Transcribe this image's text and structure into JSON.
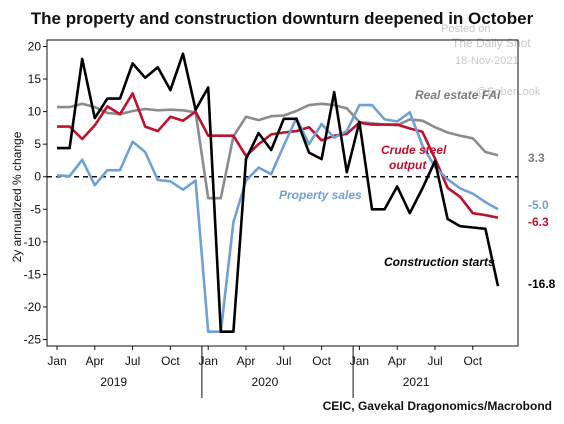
{
  "chart_data": {
    "type": "line",
    "title": "The property and construction downturn deepened in October",
    "ylabel": "2y annualized % change",
    "ylim": [
      -26,
      21
    ],
    "y_ticks": [
      20,
      15,
      10,
      5,
      0,
      -5,
      -10,
      -15,
      -20,
      -25
    ],
    "x_start": "2019-01",
    "x_months": 35,
    "month_ticks": [
      {
        "label": "Jan",
        "month": 0
      },
      {
        "label": "Apr",
        "month": 3
      },
      {
        "label": "Jul",
        "month": 6
      },
      {
        "label": "Oct",
        "month": 9
      },
      {
        "label": "Jan",
        "month": 12
      },
      {
        "label": "Apr",
        "month": 15
      },
      {
        "label": "Jul",
        "month": 18
      },
      {
        "label": "Oct",
        "month": 21
      },
      {
        "label": "Jan",
        "month": 24
      },
      {
        "label": "Apr",
        "month": 27
      },
      {
        "label": "Jul",
        "month": 30
      },
      {
        "label": "Oct",
        "month": 33
      }
    ],
    "year_ticks": [
      {
        "label": "2019",
        "month": 4.5
      },
      {
        "label": "2020",
        "month": 16.5
      },
      {
        "label": "2021",
        "month": 28.5
      }
    ],
    "series": [
      {
        "name": "Real estate FAI",
        "color": "#8c8c8c",
        "end_label": "3.3",
        "values": [
          10.7,
          10.7,
          11.2,
          10.7,
          9.8,
          9.6,
          10.1,
          10.4,
          10.2,
          10.3,
          10.2,
          9.9,
          -3.3,
          -3.3,
          6.2,
          9.2,
          8.7,
          9.3,
          9.4,
          10.1,
          11.0,
          11.2,
          11.0,
          10.5,
          8.4,
          8.2,
          8.0,
          7.9,
          8.8,
          8.6,
          7.6,
          6.8,
          6.3,
          5.9,
          3.8,
          3.3
        ]
      },
      {
        "name": "Crude steel output",
        "color": "#c0102f",
        "end_label": "-6.3",
        "values": [
          7.7,
          7.7,
          5.8,
          7.9,
          10.8,
          9.6,
          12.8,
          7.7,
          7.0,
          9.2,
          8.6,
          10.0,
          6.3,
          6.3,
          6.3,
          3.2,
          5.0,
          6.5,
          6.8,
          7.0,
          7.6,
          5.6,
          6.3,
          6.6,
          8.3,
          8.0,
          8.0,
          8.0,
          7.4,
          6.9,
          2.8,
          -1.7,
          -3.1,
          -5.6,
          -5.9,
          -6.3
        ]
      },
      {
        "name": "Property sales",
        "color": "#6fa1d2",
        "end_label": "-5.0",
        "values": [
          0.2,
          0.1,
          2.6,
          -1.3,
          1.0,
          1.0,
          5.4,
          3.8,
          -0.5,
          -0.7,
          -2.0,
          -0.6,
          -23.8,
          -23.8,
          -7.0,
          -0.6,
          1.4,
          0.4,
          4.8,
          9.0,
          5.0,
          8.1,
          6.0,
          7.0,
          11.0,
          11.0,
          8.8,
          8.5,
          9.9,
          4.8,
          1.5,
          -0.4,
          -1.8,
          -2.6,
          -3.9,
          -5.0
        ]
      },
      {
        "name": "Construction starts",
        "color": "#000000",
        "end_label": "-16.8",
        "values": [
          4.4,
          4.4,
          18.1,
          9.0,
          12.0,
          12.0,
          17.4,
          15.2,
          16.8,
          13.3,
          18.9,
          10.3,
          13.7,
          -23.8,
          -23.8,
          2.7,
          6.7,
          4.1,
          8.9,
          8.9,
          3.7,
          2.7,
          13.0,
          0.7,
          8.4,
          -5.0,
          -5.0,
          -1.5,
          -5.6,
          -1.8,
          2.4,
          -6.5,
          -7.6,
          -7.8,
          -8.0,
          -16.8
        ]
      }
    ],
    "series_labels": {
      "real_estate": "Real estate FAI",
      "steel_line1": "Crude steel",
      "steel_line2": "output",
      "sales": "Property sales",
      "starts": "Construction starts"
    },
    "legend": "inline labels",
    "grid": false,
    "zero_line": "dashed"
  },
  "source": "CEIC, Gavekal Dragonomics/Macrobond",
  "watermark": {
    "line1": "Posted on",
    "line2": "The Daily Shot",
    "line3": "18-Nov-2021",
    "line4": "@SoberLook"
  }
}
